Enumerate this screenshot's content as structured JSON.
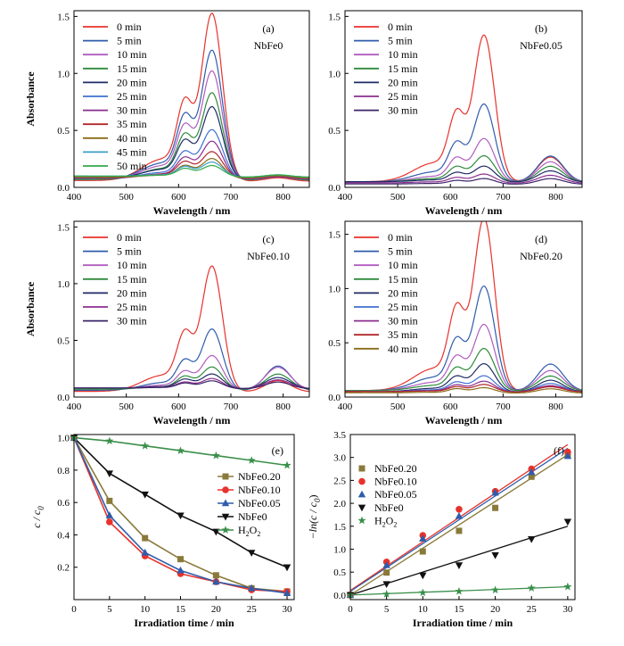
{
  "chart_data": [
    {
      "type": "line",
      "panel_label": "(a)",
      "sample": "NbFe0",
      "xlabel": "Wavelength / nm",
      "ylabel": "Absorbance",
      "xlim": [
        400,
        850
      ],
      "ylim": [
        0,
        1.55
      ],
      "xticks": [
        400,
        500,
        600,
        700,
        800
      ],
      "yticks": [
        0.0,
        0.5,
        1.0,
        1.5
      ],
      "ytick_format": 1,
      "legend_position": "top-left",
      "grid": false,
      "series": [
        {
          "name": "0 min",
          "color": "#e8322c",
          "peak": 1.46,
          "shoulder": 0.8,
          "base": 0.06,
          "band800": 0.03
        },
        {
          "name": "5 min",
          "color": "#2f5caa",
          "peak": 1.13,
          "shoulder": 0.65,
          "base": 0.07,
          "band800": 0.03
        },
        {
          "name": "10 min",
          "color": "#b05cbf",
          "peak": 0.95,
          "shoulder": 0.55,
          "base": 0.07,
          "band800": 0.03
        },
        {
          "name": "15 min",
          "color": "#2e8b3c",
          "peak": 0.76,
          "shoulder": 0.46,
          "base": 0.07,
          "band800": 0.03
        },
        {
          "name": "20 min",
          "color": "#1f2a66",
          "peak": 0.63,
          "shoulder": 0.39,
          "base": 0.08,
          "band800": 0.03
        },
        {
          "name": "25 min",
          "color": "#3f6fd1",
          "peak": 0.43,
          "shoulder": 0.28,
          "base": 0.08,
          "band800": 0.02
        },
        {
          "name": "30 min",
          "color": "#8b2e8f",
          "peak": 0.33,
          "shoulder": 0.22,
          "base": 0.08,
          "band800": 0.02
        },
        {
          "name": "35 min",
          "color": "#b2262a",
          "peak": 0.23,
          "shoulder": 0.17,
          "base": 0.09,
          "band800": 0.02
        },
        {
          "name": "40 min",
          "color": "#8a6d1a",
          "peak": 0.17,
          "shoulder": 0.13,
          "base": 0.09,
          "band800": 0.02
        },
        {
          "name": "45 min",
          "color": "#3aa0c8",
          "peak": 0.13,
          "shoulder": 0.11,
          "base": 0.1,
          "band800": 0.02
        },
        {
          "name": "50 min",
          "color": "#30a84a",
          "peak": 0.1,
          "shoulder": 0.09,
          "base": 0.1,
          "band800": 0.02
        }
      ]
    },
    {
      "type": "line",
      "panel_label": "(b)",
      "sample": "NbFe0.05",
      "xlabel": "Wavelength / nm",
      "ylabel": "",
      "xlim": [
        400,
        850
      ],
      "ylim": [
        0,
        1.55
      ],
      "xticks": [
        400,
        500,
        600,
        700,
        800
      ],
      "yticks": [
        0.0,
        0.5,
        1.0,
        1.5
      ],
      "ytick_format": 1,
      "legend_position": "top-left",
      "grid": false,
      "series": [
        {
          "name": "0 min",
          "color": "#e8322c",
          "peak": 1.28,
          "shoulder": 0.7,
          "base": 0.05,
          "band800": 0.22
        },
        {
          "name": "5 min",
          "color": "#2f5caa",
          "peak": 0.68,
          "shoulder": 0.4,
          "base": 0.05,
          "band800": 0.23
        },
        {
          "name": "10 min",
          "color": "#b05cbf",
          "peak": 0.38,
          "shoulder": 0.25,
          "base": 0.05,
          "band800": 0.18
        },
        {
          "name": "15 min",
          "color": "#2e8b3c",
          "peak": 0.23,
          "shoulder": 0.16,
          "base": 0.05,
          "band800": 0.14
        },
        {
          "name": "20 min",
          "color": "#1f2a66",
          "peak": 0.14,
          "shoulder": 0.1,
          "base": 0.05,
          "band800": 0.1
        },
        {
          "name": "25 min",
          "color": "#8b2e8f",
          "peak": 0.08,
          "shoulder": 0.06,
          "base": 0.04,
          "band800": 0.07
        },
        {
          "name": "30 min",
          "color": "#3c2468",
          "peak": 0.05,
          "shoulder": 0.04,
          "base": 0.03,
          "band800": 0.05
        }
      ]
    },
    {
      "type": "line",
      "panel_label": "(c)",
      "sample": "NbFe0.10",
      "xlabel": "Wavelength / nm",
      "ylabel": "Absorbance",
      "xlim": [
        400,
        850
      ],
      "ylim": [
        0,
        1.55
      ],
      "xticks": [
        400,
        500,
        600,
        700,
        800
      ],
      "yticks": [
        0.0,
        0.5,
        1.0,
        1.5
      ],
      "ytick_format": 1,
      "legend_position": "top-left",
      "grid": false,
      "series": [
        {
          "name": "0 min",
          "color": "#e8322c",
          "peak": 1.1,
          "shoulder": 0.6,
          "base": 0.05,
          "band800": 0.1
        },
        {
          "name": "5 min",
          "color": "#2f5caa",
          "peak": 0.54,
          "shoulder": 0.31,
          "base": 0.06,
          "band800": 0.22
        },
        {
          "name": "10 min",
          "color": "#b05cbf",
          "peak": 0.3,
          "shoulder": 0.19,
          "base": 0.07,
          "band800": 0.2
        },
        {
          "name": "15 min",
          "color": "#2e8b3c",
          "peak": 0.2,
          "shoulder": 0.14,
          "base": 0.07,
          "band800": 0.14
        },
        {
          "name": "20 min",
          "color": "#1f2a66",
          "peak": 0.13,
          "shoulder": 0.1,
          "base": 0.08,
          "band800": 0.1
        },
        {
          "name": "25 min",
          "color": "#8b2e8f",
          "peak": 0.09,
          "shoulder": 0.07,
          "base": 0.08,
          "band800": 0.08
        },
        {
          "name": "30 min",
          "color": "#3c2468",
          "peak": 0.07,
          "shoulder": 0.06,
          "base": 0.08,
          "band800": 0.06
        }
      ]
    },
    {
      "type": "line",
      "panel_label": "(d)",
      "sample": "NbFe0.20",
      "xlabel": "Wavelength / nm",
      "ylabel": "",
      "xlim": [
        400,
        850
      ],
      "ylim": [
        0,
        1.62
      ],
      "xticks": [
        400,
        500,
        600,
        700,
        800
      ],
      "yticks": [
        0.0,
        0.5,
        1.0,
        1.5
      ],
      "ytick_format": 1,
      "legend_position": "top-left",
      "grid": false,
      "series": [
        {
          "name": "0 min",
          "color": "#e8322c",
          "peak": 1.58,
          "shoulder": 0.89,
          "base": 0.06,
          "band800": 0.05
        },
        {
          "name": "5 min",
          "color": "#2f5caa",
          "peak": 0.96,
          "shoulder": 0.55,
          "base": 0.06,
          "band800": 0.25
        },
        {
          "name": "10 min",
          "color": "#b05cbf",
          "peak": 0.61,
          "shoulder": 0.37,
          "base": 0.06,
          "band800": 0.19
        },
        {
          "name": "15 min",
          "color": "#2e8b3c",
          "peak": 0.39,
          "shoulder": 0.25,
          "base": 0.06,
          "band800": 0.14
        },
        {
          "name": "20 min",
          "color": "#1f2a66",
          "peak": 0.26,
          "shoulder": 0.17,
          "base": 0.05,
          "band800": 0.11
        },
        {
          "name": "25 min",
          "color": "#3f6fd1",
          "peak": 0.15,
          "shoulder": 0.11,
          "base": 0.05,
          "band800": 0.08
        },
        {
          "name": "30 min",
          "color": "#8b2e8f",
          "peak": 0.1,
          "shoulder": 0.08,
          "base": 0.05,
          "band800": 0.06
        },
        {
          "name": "35 min",
          "color": "#b2262a",
          "peak": 0.07,
          "shoulder": 0.06,
          "base": 0.05,
          "band800": 0.05
        },
        {
          "name": "40 min",
          "color": "#8a6d1a",
          "peak": 0.05,
          "shoulder": 0.05,
          "base": 0.04,
          "band800": 0.04
        }
      ]
    },
    {
      "type": "line",
      "panel_label": "(e)",
      "sample": "",
      "xlabel": "Irradiation time / min",
      "ylabel": "c / c",
      "ylabel_sub": "0",
      "xlim": [
        0,
        31
      ],
      "ylim": [
        0,
        1.02
      ],
      "xticks": [
        0,
        5,
        10,
        15,
        20,
        25,
        30
      ],
      "yticks": [
        0.2,
        0.4,
        0.6,
        0.8,
        1.0
      ],
      "ytick_format": 1,
      "legend_position": "center-right",
      "grid": false,
      "x": [
        0,
        5,
        10,
        15,
        20,
        25,
        30
      ],
      "series": [
        {
          "name": "NbFe0.20",
          "color": "#8a7a3a",
          "marker": "square",
          "values": [
            1.0,
            0.61,
            0.38,
            0.25,
            0.15,
            0.07,
            0.05
          ]
        },
        {
          "name": "NbFe0.10",
          "color": "#e8322c",
          "marker": "circle",
          "values": [
            1.0,
            0.48,
            0.27,
            0.16,
            0.11,
            0.06,
            0.05
          ]
        },
        {
          "name": "NbFe0.05",
          "color": "#2f5caa",
          "marker": "triangle",
          "values": [
            1.0,
            0.52,
            0.29,
            0.18,
            0.11,
            0.07,
            0.04
          ]
        },
        {
          "name": "NbFe0",
          "color": "#111111",
          "marker": "triangle-down",
          "values": [
            1.0,
            0.78,
            0.65,
            0.52,
            0.42,
            0.29,
            0.2
          ]
        },
        {
          "name": "H2O2",
          "color": "#3a8f4a",
          "marker": "star",
          "values": [
            1.0,
            0.98,
            0.95,
            0.92,
            0.89,
            0.86,
            0.83
          ]
        }
      ]
    },
    {
      "type": "scatter",
      "panel_label": "(f)",
      "sample": "",
      "xlabel": "Irradiation time / min",
      "ylabel": "−ln(c / c",
      "ylabel_sub": "0",
      "ylabel_tail": ")",
      "xlim": [
        0,
        31
      ],
      "ylim": [
        -0.1,
        3.5
      ],
      "xticks": [
        0,
        5,
        10,
        15,
        20,
        25,
        30
      ],
      "yticks": [
        0.0,
        0.5,
        1.0,
        1.5,
        2.0,
        2.5,
        3.0,
        3.5
      ],
      "ytick_format": 1,
      "legend_position": "top-left",
      "grid": false,
      "x": [
        0,
        5,
        10,
        15,
        20,
        25,
        30
      ],
      "series": [
        {
          "name": "NbFe0.20",
          "color": "#8a7a3a",
          "marker": "square",
          "values": [
            0.0,
            0.49,
            0.95,
            1.4,
            1.9,
            2.58,
            3.05
          ],
          "fit": [
            0.0,
            0.102
          ]
        },
        {
          "name": "NbFe0.10",
          "color": "#e8322c",
          "marker": "circle",
          "values": [
            0.0,
            0.72,
            1.3,
            1.87,
            2.26,
            2.75,
            3.12
          ],
          "fit": [
            0.1,
            0.106
          ]
        },
        {
          "name": "NbFe0.05",
          "color": "#2f5caa",
          "marker": "triangle",
          "values": [
            0.0,
            0.65,
            1.23,
            1.72,
            2.23,
            2.68,
            3.03
          ],
          "fit": [
            0.08,
            0.104
          ]
        },
        {
          "name": "NbFe0",
          "color": "#111111",
          "marker": "triangle-down",
          "values": [
            0.0,
            0.24,
            0.43,
            0.65,
            0.87,
            1.22,
            1.6
          ],
          "fit": [
            0.0,
            0.05
          ]
        },
        {
          "name": "H2O2",
          "color": "#3a8f4a",
          "marker": "star",
          "values": [
            0.0,
            0.02,
            0.05,
            0.08,
            0.11,
            0.15,
            0.18
          ],
          "fit": [
            0.0,
            0.006
          ]
        }
      ]
    }
  ]
}
